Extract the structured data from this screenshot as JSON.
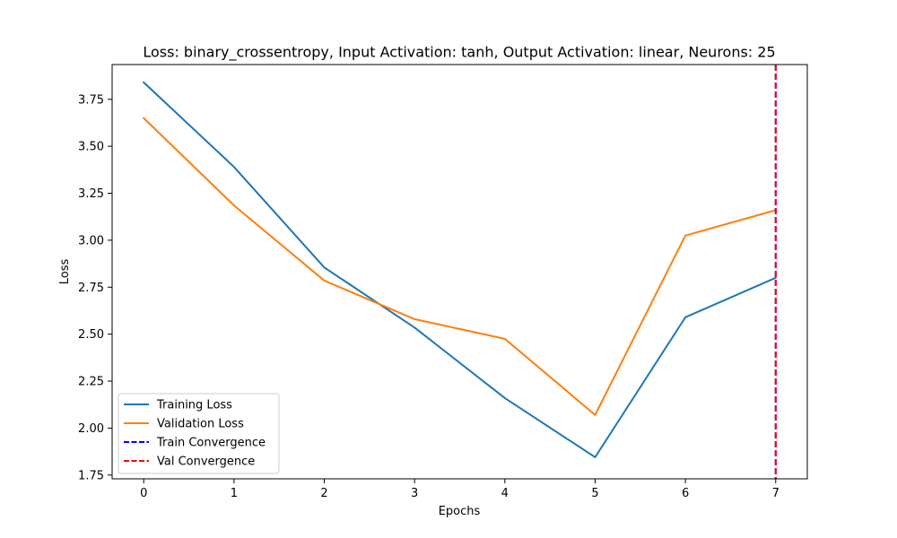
{
  "chart_data": {
    "type": "line",
    "title": "Loss: binary_crossentropy, Input Activation: tanh, Output Activation: linear, Neurons: 25",
    "xlabel": "Epochs",
    "ylabel": "Loss",
    "x": [
      0,
      1,
      2,
      3,
      4,
      5,
      6,
      7
    ],
    "xlim": [
      -0.35,
      7.35
    ],
    "ylim": [
      1.73,
      3.935
    ],
    "xticks": [
      0,
      1,
      2,
      3,
      4,
      5,
      6,
      7
    ],
    "yticks": [
      1.75,
      2.0,
      2.25,
      2.5,
      2.75,
      3.0,
      3.25,
      3.5,
      3.75
    ],
    "ytick_labels": [
      "1.75",
      "2.00",
      "2.25",
      "2.50",
      "2.75",
      "3.00",
      "3.25",
      "3.50",
      "3.75"
    ],
    "grid": false,
    "legend_position": "lower-left",
    "series": [
      {
        "name": "Training Loss",
        "color": "#1f77b4",
        "style": "solid",
        "values": [
          3.84,
          3.39,
          2.855,
          2.535,
          2.16,
          1.845,
          2.59,
          2.8
        ]
      },
      {
        "name": "Validation Loss",
        "color": "#ff7f0e",
        "style": "solid",
        "values": [
          3.65,
          3.185,
          2.785,
          2.58,
          2.475,
          2.07,
          3.025,
          3.16
        ]
      }
    ],
    "vlines": [
      {
        "name": "Train Convergence",
        "color": "#0000ff",
        "style": "dashed",
        "x": 7
      },
      {
        "name": "Val Convergence",
        "color": "#ff0000",
        "style": "dashed",
        "x": 7
      }
    ]
  }
}
